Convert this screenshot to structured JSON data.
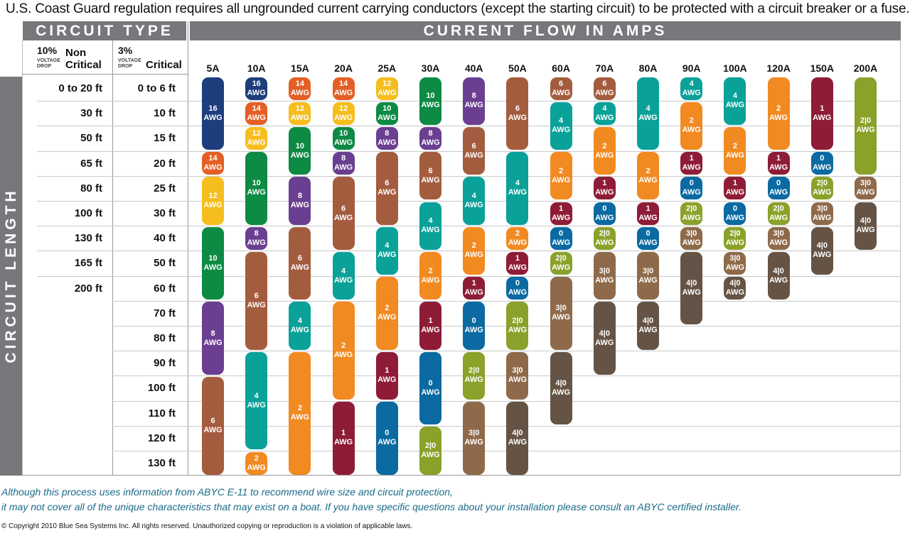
{
  "title": "U.S. Coast Guard regulation requires all ungrounded current carrying conductors (except the starting circuit) to be protected with a circuit breaker or a fuse.",
  "header": {
    "circuit_type": "CIRCUIT TYPE",
    "current_flow": "CURRENT FLOW IN AMPS",
    "circuit_length": "CIRCUIT LENGTH"
  },
  "circuit_types": {
    "non_critical": {
      "pct": "10%",
      "drop_line1": "VOLTAGE",
      "drop_line2": "DROP",
      "name_line1": "Non",
      "name_line2": "Critical"
    },
    "critical": {
      "pct": "3%",
      "drop_line1": "VOLTAGE",
      "drop_line2": "DROP",
      "name_line1": "Critical"
    }
  },
  "colors": {
    "16 AWG": "#1d3d7c",
    "14 AWG": "#e35f26",
    "12 AWG": "#f5bd1d",
    "10 AWG": "#0d8a44",
    "8 AWG": "#6a3f91",
    "6 AWG": "#a45c3f",
    "4 AWG": "#0aa199",
    "2 AWG": "#f18a21",
    "1 AWG": "#8e1c36",
    "0 AWG": "#0a6aa1",
    "2|0 AWG": "#8aa12a",
    "3|0 AWG": "#8e6a4a",
    "4|0 AWG": "#655445"
  },
  "chart_data": {
    "type": "table",
    "columns": [
      "5A",
      "10A",
      "15A",
      "20A",
      "25A",
      "30A",
      "40A",
      "50A",
      "60A",
      "70A",
      "80A",
      "90A",
      "100A",
      "120A",
      "150A",
      "200A"
    ],
    "rows_non_critical": [
      "0 to 20 ft",
      "30 ft",
      "50 ft",
      "65 ft",
      "80 ft",
      "100 ft",
      "130 ft",
      "165 ft",
      "200 ft"
    ],
    "rows_critical": [
      "0 to 6 ft",
      "10 ft",
      "15 ft",
      "20 ft",
      "25 ft",
      "30 ft",
      "40 ft",
      "50 ft",
      "60 ft",
      "70 ft",
      "80 ft",
      "90 ft",
      "100 ft",
      "110 ft",
      "120 ft",
      "130 ft"
    ],
    "cells": [
      [
        {
          "g": "16",
          "s": 0,
          "e": 2
        },
        {
          "g": "14",
          "s": 3,
          "e": 3
        },
        {
          "g": "12",
          "s": 4,
          "e": 5
        },
        {
          "g": "10",
          "s": 6,
          "e": 8
        },
        {
          "g": "8",
          "s": 9,
          "e": 11
        },
        {
          "g": "6",
          "s": 12,
          "e": 15
        }
      ],
      [
        {
          "g": "16",
          "s": 0,
          "e": 0
        },
        {
          "g": "14",
          "s": 1,
          "e": 1
        },
        {
          "g": "12",
          "s": 2,
          "e": 2
        },
        {
          "g": "10",
          "s": 3,
          "e": 5
        },
        {
          "g": "8",
          "s": 6,
          "e": 6
        },
        {
          "g": "6",
          "s": 7,
          "e": 10
        },
        {
          "g": "4",
          "s": 11,
          "e": 14
        },
        {
          "g": "2",
          "s": 15,
          "e": 15
        }
      ],
      [
        {
          "g": "14",
          "s": 0,
          "e": 0
        },
        {
          "g": "12",
          "s": 1,
          "e": 1
        },
        {
          "g": "10",
          "s": 2,
          "e": 3
        },
        {
          "g": "8",
          "s": 4,
          "e": 5
        },
        {
          "g": "6",
          "s": 6,
          "e": 8
        },
        {
          "g": "4",
          "s": 9,
          "e": 10
        },
        {
          "g": "2",
          "s": 11,
          "e": 15
        }
      ],
      [
        {
          "g": "14",
          "s": 0,
          "e": 0
        },
        {
          "g": "12",
          "s": 1,
          "e": 1
        },
        {
          "g": "10",
          "s": 2,
          "e": 2
        },
        {
          "g": "8",
          "s": 3,
          "e": 3
        },
        {
          "g": "6",
          "s": 4,
          "e": 6
        },
        {
          "g": "4",
          "s": 7,
          "e": 8
        },
        {
          "g": "2",
          "s": 9,
          "e": 12
        },
        {
          "g": "1",
          "s": 13,
          "e": 15
        }
      ],
      [
        {
          "g": "12",
          "s": 0,
          "e": 0
        },
        {
          "g": "10",
          "s": 1,
          "e": 1
        },
        {
          "g": "8",
          "s": 2,
          "e": 2
        },
        {
          "g": "6",
          "s": 3,
          "e": 5
        },
        {
          "g": "4",
          "s": 6,
          "e": 7
        },
        {
          "g": "2",
          "s": 8,
          "e": 10
        },
        {
          "g": "1",
          "s": 11,
          "e": 12
        },
        {
          "g": "0",
          "s": 13,
          "e": 15
        }
      ],
      [
        {
          "g": "10",
          "s": 0,
          "e": 1
        },
        {
          "g": "8",
          "s": 2,
          "e": 2
        },
        {
          "g": "6",
          "s": 3,
          "e": 4
        },
        {
          "g": "4",
          "s": 5,
          "e": 6
        },
        {
          "g": "2",
          "s": 7,
          "e": 8
        },
        {
          "g": "1",
          "s": 9,
          "e": 10
        },
        {
          "g": "0",
          "s": 11,
          "e": 13
        },
        {
          "g": "2|0",
          "s": 14,
          "e": 15
        }
      ],
      [
        {
          "g": "8",
          "s": 0,
          "e": 1
        },
        {
          "g": "6",
          "s": 2,
          "e": 3
        },
        {
          "g": "4",
          "s": 4,
          "e": 5
        },
        {
          "g": "2",
          "s": 6,
          "e": 7
        },
        {
          "g": "1",
          "s": 8,
          "e": 8
        },
        {
          "g": "0",
          "s": 9,
          "e": 10
        },
        {
          "g": "2|0",
          "s": 11,
          "e": 12
        },
        {
          "g": "3|0",
          "s": 13,
          "e": 15
        }
      ],
      [
        {
          "g": "6",
          "s": 0,
          "e": 2
        },
        {
          "g": "4",
          "s": 3,
          "e": 5
        },
        {
          "g": "2",
          "s": 6,
          "e": 6
        },
        {
          "g": "1",
          "s": 7,
          "e": 7
        },
        {
          "g": "0",
          "s": 8,
          "e": 8
        },
        {
          "g": "2|0",
          "s": 9,
          "e": 10
        },
        {
          "g": "3|0",
          "s": 11,
          "e": 12
        },
        {
          "g": "4|0",
          "s": 13,
          "e": 15
        }
      ],
      [
        {
          "g": "6",
          "s": 0,
          "e": 0
        },
        {
          "g": "4",
          "s": 1,
          "e": 2
        },
        {
          "g": "2",
          "s": 3,
          "e": 4
        },
        {
          "g": "1",
          "s": 5,
          "e": 5
        },
        {
          "g": "0",
          "s": 6,
          "e": 6
        },
        {
          "g": "2|0",
          "s": 7,
          "e": 7
        },
        {
          "g": "3|0",
          "s": 8,
          "e": 10
        },
        {
          "g": "4|0",
          "s": 11,
          "e": 13
        }
      ],
      [
        {
          "g": "6",
          "s": 0,
          "e": 0
        },
        {
          "g": "4",
          "s": 1,
          "e": 1
        },
        {
          "g": "2",
          "s": 2,
          "e": 3
        },
        {
          "g": "1",
          "s": 4,
          "e": 4
        },
        {
          "g": "0",
          "s": 5,
          "e": 5
        },
        {
          "g": "2|0",
          "s": 6,
          "e": 6
        },
        {
          "g": "3|0",
          "s": 7,
          "e": 8
        },
        {
          "g": "4|0",
          "s": 9,
          "e": 11
        }
      ],
      [
        {
          "g": "4",
          "s": 0,
          "e": 2
        },
        {
          "g": "2",
          "s": 3,
          "e": 4
        },
        {
          "g": "1",
          "s": 5,
          "e": 5
        },
        {
          "g": "0",
          "s": 6,
          "e": 6
        },
        {
          "g": "3|0",
          "s": 7,
          "e": 8
        },
        {
          "g": "4|0",
          "s": 9,
          "e": 10
        }
      ],
      [
        {
          "g": "4",
          "s": 0,
          "e": 0
        },
        {
          "g": "2",
          "s": 1,
          "e": 2
        },
        {
          "g": "1",
          "s": 3,
          "e": 3
        },
        {
          "g": "0",
          "s": 4,
          "e": 4
        },
        {
          "g": "2|0",
          "s": 5,
          "e": 5
        },
        {
          "g": "3|0",
          "s": 6,
          "e": 6
        },
        {
          "g": "4|0",
          "s": 7,
          "e": 9
        }
      ],
      [
        {
          "g": "4",
          "s": 0,
          "e": 1
        },
        {
          "g": "2",
          "s": 2,
          "e": 3
        },
        {
          "g": "1",
          "s": 4,
          "e": 4
        },
        {
          "g": "0",
          "s": 5,
          "e": 5
        },
        {
          "g": "2|0",
          "s": 6,
          "e": 6
        },
        {
          "g": "3|0",
          "s": 7,
          "e": 7
        },
        {
          "g": "4|0",
          "s": 8,
          "e": 8
        }
      ],
      [
        {
          "g": "2",
          "s": 0,
          "e": 2
        },
        {
          "g": "1",
          "s": 3,
          "e": 3
        },
        {
          "g": "0",
          "s": 4,
          "e": 4
        },
        {
          "g": "2|0",
          "s": 5,
          "e": 5
        },
        {
          "g": "3|0",
          "s": 6,
          "e": 6
        },
        {
          "g": "4|0",
          "s": 7,
          "e": 8
        }
      ],
      [
        {
          "g": "1",
          "s": 0,
          "e": 2
        },
        {
          "g": "0",
          "s": 3,
          "e": 3
        },
        {
          "g": "2|0",
          "s": 4,
          "e": 4
        },
        {
          "g": "3|0",
          "s": 5,
          "e": 5
        },
        {
          "g": "4|0",
          "s": 6,
          "e": 7
        }
      ],
      [
        {
          "g": "2|0",
          "s": 0,
          "e": 3
        },
        {
          "g": "3|0",
          "s": 4,
          "e": 4
        },
        {
          "g": "4|0",
          "s": 5,
          "e": 6
        }
      ]
    ]
  },
  "footnote": {
    "line1": "Although this process uses information from  ABYC E-11 to recommend wire size and circuit protection,",
    "line2": "it may not cover all of the unique characteristics that may exist on a boat. If you have specific questions about your installation please consult an ABYC certified installer."
  },
  "copyright": "© Copyright 2010 Blue Sea Systems Inc. All rights reserved. Unauthorized copying or reproduction is a violation of applicable laws."
}
